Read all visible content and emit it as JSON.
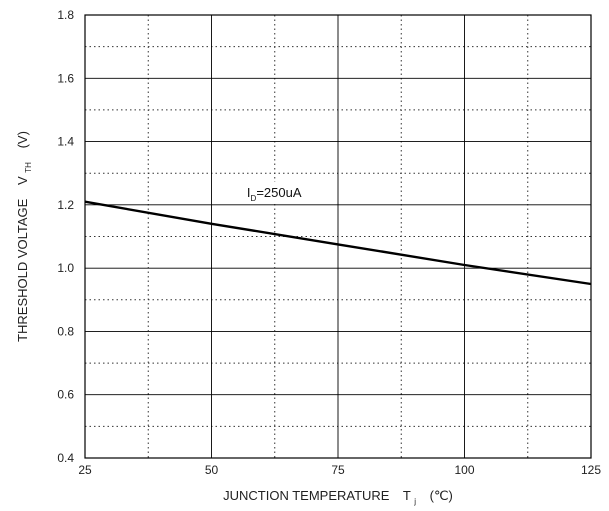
{
  "chart_data": {
    "type": "line",
    "title": "",
    "xlabel": {
      "text": "JUNCTION TEMPERATURE",
      "symbol": "T",
      "subscript": "j",
      "unit": "(℃)"
    },
    "ylabel": {
      "text": "THRESHOLD VOLTAGE",
      "symbol": "V",
      "subscript": "TH",
      "unit": "(V)"
    },
    "xlim": [
      25,
      125
    ],
    "ylim": [
      0.4,
      1.8
    ],
    "xticks": [
      25,
      50,
      75,
      100,
      125
    ],
    "xtick_labels": [
      "25",
      "50",
      "75",
      "100",
      "125"
    ],
    "yticks": [
      0.4,
      0.6,
      0.8,
      1.0,
      1.2,
      1.4,
      1.6,
      1.8
    ],
    "ytick_labels": [
      "0.4",
      "0.6",
      "0.8",
      "1.0",
      "1.2",
      "1.4",
      "1.6",
      "1.8"
    ],
    "grid": {
      "major": "solid",
      "minor": "dotted",
      "x_minor_step": 12.5,
      "y_minor_step": 0.1
    },
    "series": [
      {
        "x": [
          25,
          50,
          75,
          100,
          125
        ],
        "y": [
          1.21,
          1.14,
          1.075,
          1.01,
          0.95
        ],
        "color": "#000000"
      }
    ],
    "annotations": [
      {
        "symbol": "I",
        "subscript": "D",
        "text": "=250uA",
        "x": 57,
        "y": 1.225
      }
    ]
  }
}
